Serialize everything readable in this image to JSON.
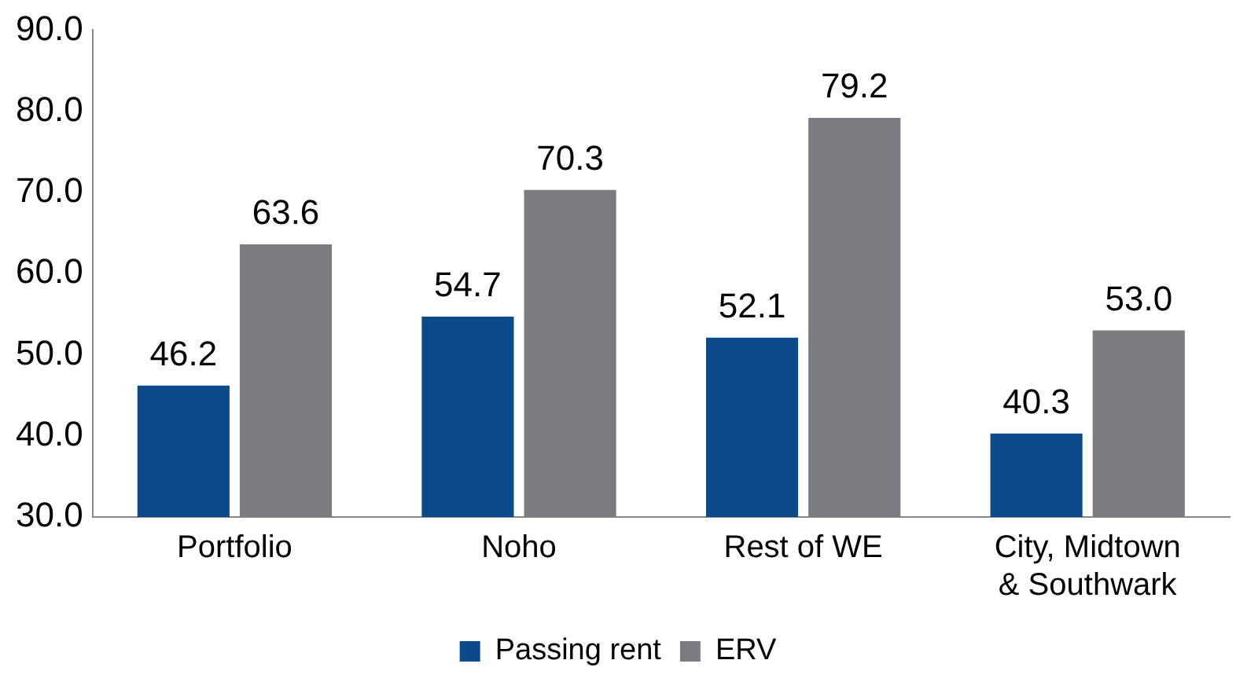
{
  "chart_data": {
    "type": "bar",
    "categories": [
      "Portfolio",
      "Noho",
      "Rest of WE",
      "City, Midtown & Southwark"
    ],
    "series": [
      {
        "name": "Passing rent",
        "color": "#0b4a8b",
        "values": [
          46.2,
          54.7,
          52.1,
          40.3
        ],
        "value_labels": [
          "46.2",
          "54.7",
          "52.1",
          "40.3"
        ]
      },
      {
        "name": "ERV",
        "color": "#7b7c82",
        "values": [
          63.6,
          70.3,
          79.2,
          53.0
        ],
        "value_labels": [
          "63.6",
          "70.3",
          "79.2",
          "53.0"
        ]
      }
    ],
    "ylim": [
      30,
      90
    ],
    "yticks": [
      {
        "value": 30,
        "label": "30.0"
      },
      {
        "value": 40,
        "label": "40.0"
      },
      {
        "value": 50,
        "label": "50.0"
      },
      {
        "value": 60,
        "label": "60.0"
      },
      {
        "value": 70,
        "label": "70.0"
      },
      {
        "value": 80,
        "label": "80.0"
      },
      {
        "value": 90,
        "label": "90.0"
      }
    ],
    "grid": false,
    "legend": "bottom"
  }
}
